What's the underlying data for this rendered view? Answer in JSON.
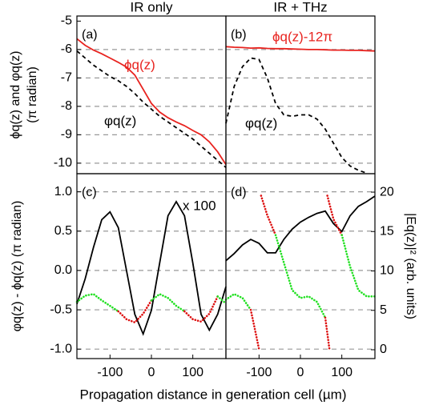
{
  "xlabel": "Propagation distance in generation cell (µm)",
  "chart_data": [
    {
      "type": "line",
      "label": "(a)",
      "title": "IR only",
      "ylabel": [
        "ϕq(z) and φq(z)",
        "(π radian)"
      ],
      "xlim": [
        -180,
        180
      ],
      "ylim": [
        -10.37,
        -4.82
      ],
      "yticks": [
        -10,
        -9,
        -8,
        -7,
        -6,
        -5
      ],
      "ytick_labels": true,
      "grid": true,
      "x": [
        -180,
        -160,
        -140,
        -120,
        -100,
        -80,
        -60,
        -40,
        -20,
        0,
        20,
        40,
        60,
        80,
        100,
        120,
        140,
        160,
        180
      ],
      "series": [
        {
          "color": "#e8231f",
          "style": "solid",
          "values": [
            -5.62,
            -5.85,
            -6.02,
            -6.15,
            -6.3,
            -6.45,
            -6.62,
            -6.9,
            -7.4,
            -7.9,
            -8.2,
            -8.4,
            -8.55,
            -8.68,
            -8.85,
            -9.0,
            -9.25,
            -9.6,
            -10.05
          ]
        },
        {
          "color": "#000000",
          "style": "dashed",
          "values": [
            -6.05,
            -6.3,
            -6.55,
            -6.75,
            -6.95,
            -7.1,
            -7.3,
            -7.55,
            -7.85,
            -8.1,
            -8.35,
            -8.55,
            -8.75,
            -8.95,
            -9.15,
            -9.4,
            -9.65,
            -9.9,
            -10.15
          ]
        }
      ],
      "annotations": [
        {
          "text": "ϕq(z)",
          "color": "#e8231f"
        },
        {
          "text": "φq(z)",
          "color": "#000000"
        }
      ]
    },
    {
      "type": "line",
      "label": "(b)",
      "title": "IR + THz",
      "xlim": [
        -180,
        180
      ],
      "ylim": [
        -10.37,
        -4.82
      ],
      "yticks": [
        -10,
        -9,
        -8,
        -7,
        -6,
        -5
      ],
      "ytick_labels": false,
      "grid": true,
      "x": [
        -180,
        -160,
        -140,
        -120,
        -100,
        -80,
        -60,
        -40,
        -20,
        0,
        20,
        40,
        60,
        80,
        100,
        120,
        140,
        160,
        180
      ],
      "series": [
        {
          "color": "#e8231f",
          "style": "solid",
          "values": [
            -5.9,
            -5.92,
            -5.93,
            -5.95,
            -5.94,
            -5.96,
            -5.97,
            -5.97,
            -5.98,
            -5.99,
            -6.0,
            -6.0,
            -6.01,
            -6.02,
            -6.02,
            -6.03,
            -6.03,
            -6.04,
            -6.05
          ]
        },
        {
          "color": "#000000",
          "style": "dashed",
          "values": [
            -8.6,
            -7.3,
            -6.6,
            -6.3,
            -6.35,
            -7.0,
            -7.9,
            -8.3,
            -8.35,
            -8.3,
            -8.3,
            -8.45,
            -8.8,
            -9.3,
            -9.8,
            -10.1,
            -10.25,
            -10.35,
            null
          ]
        }
      ],
      "annotations": [
        {
          "text": "ϕq(z)-12π",
          "color": "#e8231f"
        },
        {
          "text": "φq(z)",
          "color": "#000000"
        }
      ]
    },
    {
      "type": "line",
      "label": "(c)",
      "ylabel": "φq(z) - ϕq(z) (π radian)",
      "xlim": [
        -180,
        180
      ],
      "xticks": [
        -100,
        0,
        100
      ],
      "ylim": [
        -1.12,
        1.23
      ],
      "yticks": [
        {
          "value": -1,
          "label": "-1.0"
        },
        -0.5,
        {
          "value": 0,
          "label": "0.0"
        },
        0.5,
        {
          "value": 1,
          "label": "1.0"
        }
      ],
      "ytick_labels": true,
      "grid": true,
      "y2lim": [
        -1.12,
        22.34
      ],
      "x": [
        -180,
        -160,
        -140,
        -120,
        -100,
        -80,
        -60,
        -40,
        -20,
        0,
        20,
        40,
        60,
        80,
        100,
        120,
        140,
        160,
        180
      ],
      "series": [
        {
          "color": "#000000",
          "style": "solid",
          "axis": "y2",
          "values": [
            5.8,
            9,
            13,
            16.5,
            17.5,
            15.5,
            10,
            4.5,
            2,
            5,
            11,
            17,
            18.8,
            17,
            11,
            4.5,
            2.5,
            4.5,
            8
          ]
        },
        {
          "style": "dotted",
          "values": [
            -0.4,
            -0.32,
            -0.3,
            -0.38,
            -0.45,
            -0.52,
            -0.62,
            -0.66,
            -0.55,
            -0.38,
            -0.3,
            -0.35,
            -0.45,
            -0.52,
            -0.62,
            -0.65,
            -0.55,
            -0.33,
            -0.42
          ],
          "point_colors": [
            "#22e022",
            "#22e022",
            "#22e022",
            "#22e022",
            "#22e022",
            "#dd1111",
            "#dd1111",
            "#dd1111",
            "#dd1111",
            "#22e022",
            "#22e022",
            "#22e022",
            "#22e022",
            "#dd1111",
            "#dd1111",
            "#dd1111",
            "#dd1111",
            "#22e022",
            "#22e022"
          ]
        }
      ],
      "annotations": [
        {
          "text": "x 100",
          "color": "#000000"
        }
      ]
    },
    {
      "type": "line",
      "label": "(d)",
      "y2label": "|Eq(z)|² (arb. units)",
      "xlim": [
        -180,
        180
      ],
      "xticks": [
        -100,
        0,
        100
      ],
      "ylim": [
        -1.12,
        1.23
      ],
      "yticks": [
        {
          "value": -1,
          "label": "-1.0"
        },
        -0.5,
        {
          "value": 0,
          "label": "0.0"
        },
        0.5,
        {
          "value": 1,
          "label": "1.0"
        }
      ],
      "ytick_labels": false,
      "grid": true,
      "y2lim": [
        -1.12,
        22.34
      ],
      "y2ticks": [
        0,
        5,
        10,
        15,
        20
      ],
      "x": [
        -180,
        -160,
        -140,
        -120,
        -100,
        -80,
        -60,
        -40,
        -20,
        0,
        20,
        40,
        60,
        80,
        100,
        120,
        140,
        160,
        180
      ],
      "series": [
        {
          "color": "#000000",
          "style": "solid",
          "axis": "y2",
          "values": [
            11.3,
            12.2,
            13.3,
            14,
            13.5,
            12.3,
            12.3,
            14,
            15.3,
            16.2,
            16.8,
            17.3,
            17.6,
            16,
            15,
            17,
            18.2,
            18.8,
            19.5
          ]
        },
        {
          "style": "dotted",
          "x": [
            -180,
            -160,
            -140,
            -120,
            -110,
            -100
          ],
          "values": [
            -0.37,
            -0.3,
            -0.35,
            -0.5,
            -0.75,
            -1.0
          ],
          "point_colors": [
            "#22e022",
            "#22e022",
            "#22e022",
            "#dd1111",
            "#dd1111",
            "#dd1111"
          ]
        },
        {
          "style": "dotted",
          "x": [
            -95,
            -80,
            -60,
            -40,
            -20,
            0,
            20,
            40,
            60,
            70
          ],
          "values": [
            0.95,
            0.7,
            0.45,
            0.1,
            -0.25,
            -0.35,
            -0.33,
            -0.4,
            -0.6,
            -1.0
          ],
          "point_colors": [
            "#dd1111",
            "#dd1111",
            "#22e022",
            "#22e022",
            "#22e022",
            "#22e022",
            "#22e022",
            "#22e022",
            "#dd1111",
            "#dd1111"
          ]
        },
        {
          "style": "dotted",
          "x": [
            65,
            80,
            100,
            120,
            140,
            160,
            180
          ],
          "values": [
            0.95,
            0.65,
            0.45,
            0.05,
            -0.25,
            -0.33,
            -0.33
          ],
          "point_colors": [
            "#dd1111",
            "#dd1111",
            "#22e022",
            "#22e022",
            "#22e022",
            "#22e022",
            "#22e022"
          ]
        }
      ]
    }
  ]
}
